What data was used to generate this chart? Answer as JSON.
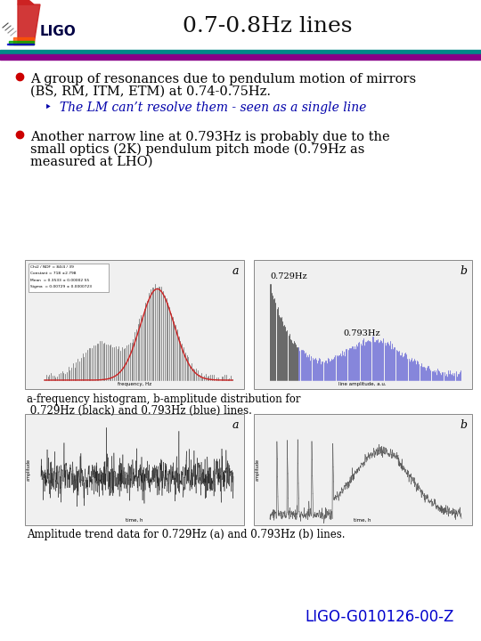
{
  "title": "0.7-0.8Hz lines",
  "title_fontsize": 18,
  "background_color": "#ffffff",
  "bullet1_line1": "A group of resonances due to pendulum motion of mirrors",
  "bullet1_line2": "(BS, RM, ITM, ETM) at 0.74-0.75Hz.",
  "sub_bullet": "‣  The LM can’t resolve them - seen as a single line",
  "bullet2_line1": "Another narrow line at 0.793Hz is probably due to the",
  "bullet2_line2": "small optics (2K) pendulum pitch mode (0.79Hz as",
  "bullet2_line3": "measured at LHO)",
  "caption1_line1": "a-frequency histogram, b-amplitude distribution for",
  "caption1_line2": " 0.729Hz (black) and 0.793Hz (blue) lines.",
  "caption2": "Amplitude trend data for 0.729Hz (a) and 0.793Hz (b) lines.",
  "footer": "LIGO-G010126-00-Z",
  "footer_color": "#0000cc",
  "bullet_color": "#cc0000",
  "sub_bullet_color": "#0000aa",
  "text_color": "#000000",
  "text_fontsize": 10.5,
  "sub_fontsize": 10,
  "footer_fontsize": 12,
  "header_teal": "#008888",
  "header_purple": "#880088",
  "logo_colors": [
    "#cc2200",
    "#ff6600",
    "#00aa00",
    "#0000cc",
    "#8800aa"
  ]
}
